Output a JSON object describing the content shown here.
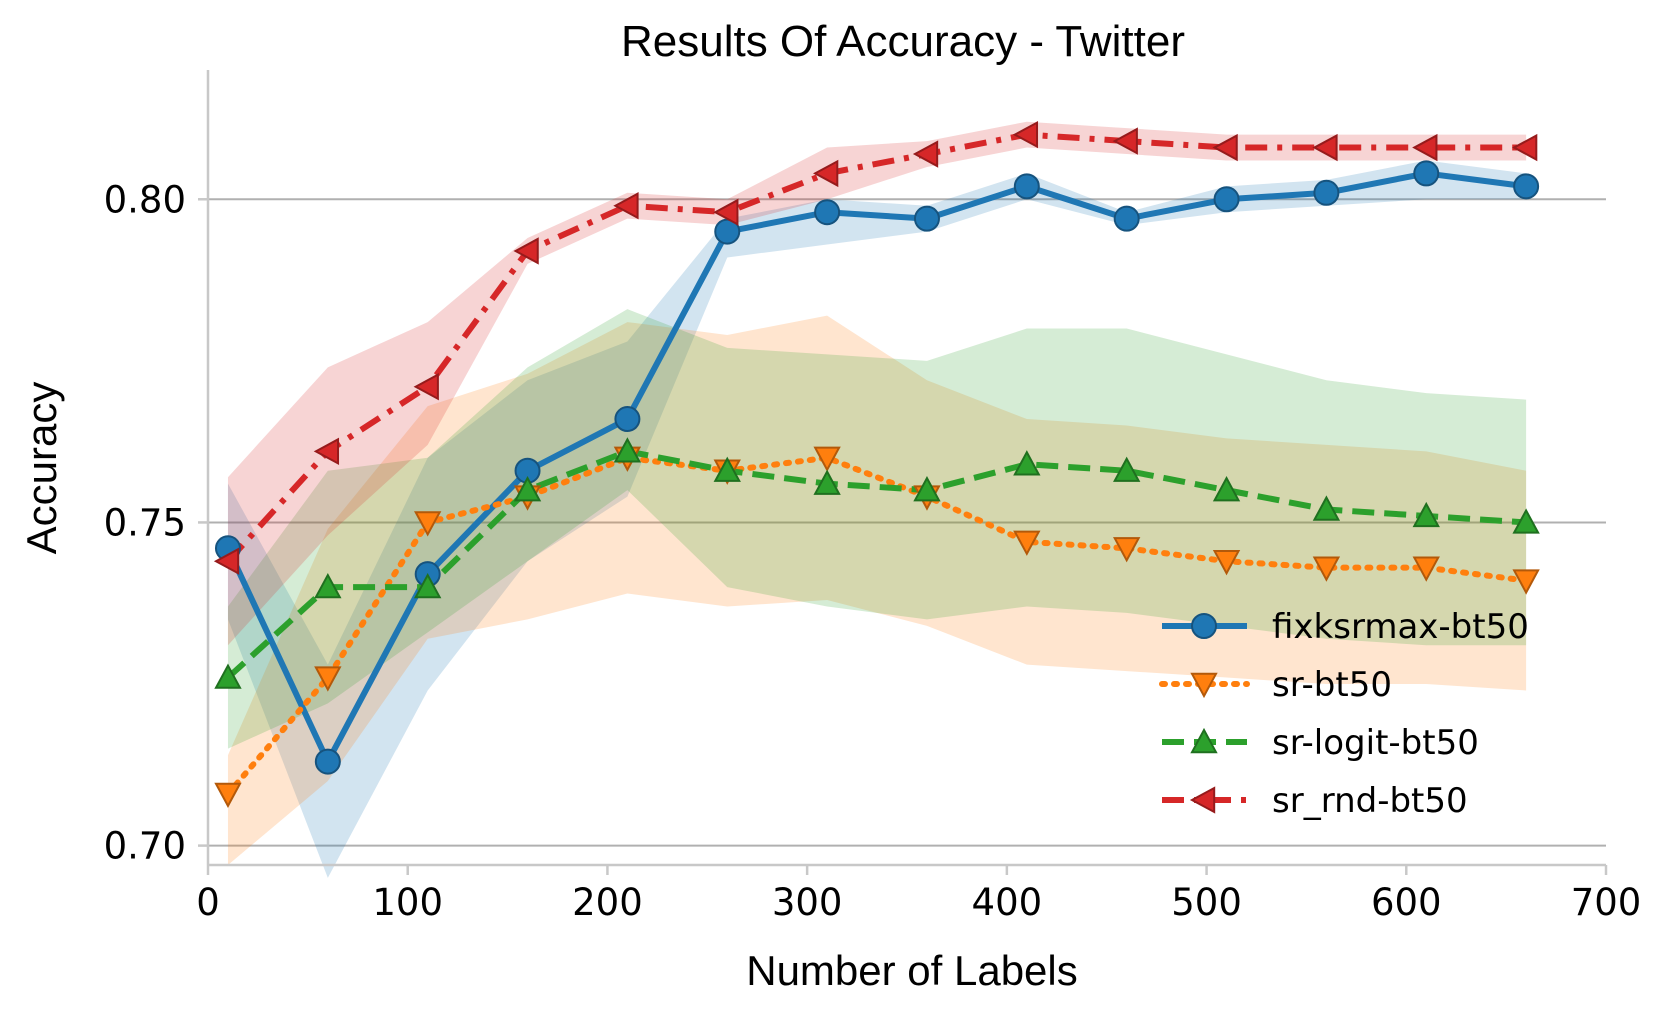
{
  "chart_data": {
    "type": "line",
    "title": "Results Of Accuracy - Twitter",
    "xlabel": "Number of Labels",
    "ylabel": "Accuracy",
    "xlim": [
      0,
      700
    ],
    "ylim": [
      0.697,
      0.82
    ],
    "xticks": [
      0,
      100,
      200,
      300,
      400,
      500,
      600,
      700
    ],
    "xtick_labels": [
      "0",
      "100",
      "200",
      "300",
      "400",
      "500",
      "600",
      "700"
    ],
    "yticks": [
      0.7,
      0.75,
      0.8
    ],
    "ytick_labels": [
      "0.70",
      "0.75",
      "0.80"
    ],
    "grid": "horizontal",
    "legend_position": "lower-right",
    "x": [
      10,
      60,
      110,
      160,
      210,
      260,
      310,
      360,
      410,
      460,
      510,
      560,
      610,
      660
    ],
    "series": [
      {
        "name": "fixksrmax-bt50",
        "color": "#1f77b4",
        "fill_color": "#1f77b4",
        "line_style": "solid",
        "marker": "circle",
        "values": [
          0.746,
          0.713,
          0.742,
          0.758,
          0.766,
          0.795,
          0.798,
          0.797,
          0.802,
          0.797,
          0.8,
          0.801,
          0.804,
          0.802
        ],
        "lower": [
          0.735,
          0.695,
          0.724,
          0.744,
          0.754,
          0.791,
          0.793,
          0.795,
          0.8,
          0.796,
          0.798,
          0.799,
          0.8,
          0.8
        ],
        "upper": [
          0.756,
          0.728,
          0.76,
          0.772,
          0.778,
          0.797,
          0.8,
          0.799,
          0.804,
          0.798,
          0.802,
          0.803,
          0.806,
          0.804
        ]
      },
      {
        "name": "sr-bt50",
        "color": "#ff7f0e",
        "fill_color": "#ff7f0e",
        "line_style": "dotted",
        "marker": "triangle-down",
        "values": [
          0.708,
          0.726,
          0.75,
          0.754,
          0.76,
          0.758,
          0.76,
          0.754,
          0.747,
          0.746,
          0.744,
          0.743,
          0.743,
          0.741
        ],
        "lower": [
          0.697,
          0.71,
          0.732,
          0.735,
          0.739,
          0.737,
          0.738,
          0.734,
          0.728,
          0.727,
          0.726,
          0.725,
          0.725,
          0.724
        ],
        "upper": [
          0.714,
          0.749,
          0.768,
          0.773,
          0.781,
          0.779,
          0.782,
          0.772,
          0.766,
          0.765,
          0.763,
          0.762,
          0.761,
          0.758
        ]
      },
      {
        "name": "sr-logit-bt50",
        "color": "#2ca02c",
        "fill_color": "#2ca02c",
        "line_style": "dashed",
        "marker": "triangle-up",
        "values": [
          0.726,
          0.74,
          0.74,
          0.755,
          0.761,
          0.758,
          0.756,
          0.755,
          0.759,
          0.758,
          0.755,
          0.752,
          0.751,
          0.75
        ],
        "lower": [
          0.715,
          0.722,
          0.733,
          0.744,
          0.755,
          0.74,
          0.737,
          0.735,
          0.737,
          0.736,
          0.734,
          0.732,
          0.731,
          0.731
        ],
        "upper": [
          0.737,
          0.758,
          0.76,
          0.774,
          0.783,
          0.777,
          0.776,
          0.775,
          0.78,
          0.78,
          0.776,
          0.772,
          0.77,
          0.769
        ]
      },
      {
        "name": "sr_rnd-bt50",
        "color": "#d62728",
        "fill_color": "#d62728",
        "line_style": "dashdot",
        "marker": "triangle-left",
        "values": [
          0.744,
          0.761,
          0.771,
          0.792,
          0.799,
          0.798,
          0.804,
          0.807,
          0.81,
          0.809,
          0.808,
          0.808,
          0.808,
          0.808
        ],
        "lower": [
          0.731,
          0.748,
          0.762,
          0.79,
          0.797,
          0.796,
          0.8,
          0.805,
          0.808,
          0.807,
          0.806,
          0.806,
          0.806,
          0.806
        ],
        "upper": [
          0.757,
          0.774,
          0.781,
          0.794,
          0.801,
          0.8,
          0.808,
          0.809,
          0.812,
          0.811,
          0.81,
          0.81,
          0.81,
          0.81
        ]
      }
    ]
  }
}
